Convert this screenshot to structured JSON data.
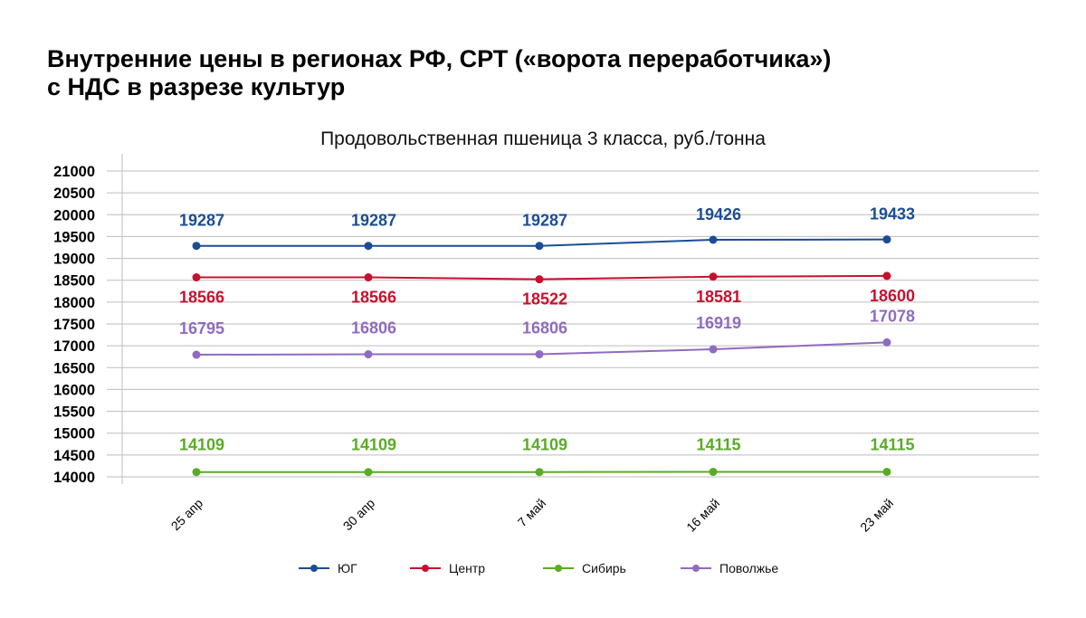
{
  "page": {
    "title_line1": "Внутренние цены в регионах РФ, СРТ («ворота переработчика»)",
    "title_line2": "с НДС в разрезе культур"
  },
  "chart_data": {
    "type": "line",
    "title": "Продовольственная пшеница 3 класса, руб./тонна",
    "xlabel": "",
    "ylabel": "",
    "categories": [
      "25 апр",
      "30 апр",
      "7 май",
      "16 май",
      "23 май"
    ],
    "ylim": [
      14000,
      21000
    ],
    "yticks": [
      14000,
      14500,
      15000,
      15500,
      16000,
      16500,
      17000,
      17500,
      18000,
      18500,
      19000,
      19500,
      20000,
      20500,
      21000
    ],
    "grid": true,
    "legend_position": "bottom",
    "data_labels": true,
    "series": [
      {
        "name": "ЮГ",
        "color": "#1b4d96",
        "values": [
          19287,
          19287,
          19287,
          19426,
          19433
        ]
      },
      {
        "name": "Центр",
        "color": "#c8102e",
        "values": [
          18566,
          18566,
          18522,
          18581,
          18600
        ]
      },
      {
        "name": "Сибирь",
        "color": "#5aab26",
        "values": [
          14109,
          14109,
          14109,
          14115,
          14115
        ]
      },
      {
        "name": "Поволжье",
        "color": "#8f6bc1",
        "values": [
          16795,
          16806,
          16806,
          16919,
          17078
        ]
      }
    ]
  }
}
